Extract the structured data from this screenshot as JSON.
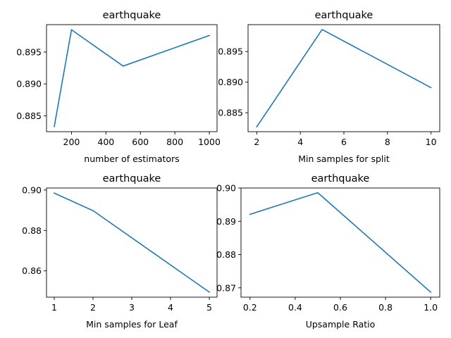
{
  "colors": {
    "line": "#1f77b4",
    "axis": "#000000",
    "background": "#ffffff"
  },
  "chart_data": [
    {
      "type": "line",
      "title": "earthquake",
      "xlabel": "number of estimators",
      "ylabel": "",
      "x": [
        100,
        200,
        500,
        1000
      ],
      "series": [
        {
          "values": [
            0.8833,
            0.8985,
            0.8928,
            0.8976
          ]
        }
      ],
      "xlim": [
        55,
        1045
      ],
      "ylim": [
        0.8825,
        0.8993
      ],
      "xticks": [
        200,
        400,
        600,
        800,
        1000
      ],
      "xtick_labels": [
        "200",
        "400",
        "600",
        "800",
        "1000"
      ],
      "yticks": [
        0.885,
        0.89,
        0.895
      ],
      "ytick_labels": [
        "0.885",
        "0.890",
        "0.895"
      ],
      "grid": false
    },
    {
      "type": "line",
      "title": "earthquake",
      "xlabel": "Min samples for split",
      "ylabel": "",
      "x": [
        2,
        5,
        10
      ],
      "series": [
        {
          "values": [
            0.8827,
            0.8986,
            0.8891
          ]
        }
      ],
      "xlim": [
        1.6,
        10.4
      ],
      "ylim": [
        0.8819,
        0.8994
      ],
      "xticks": [
        2,
        4,
        6,
        8,
        10
      ],
      "xtick_labels": [
        "2",
        "4",
        "6",
        "8",
        "10"
      ],
      "yticks": [
        0.885,
        0.89,
        0.895
      ],
      "ytick_labels": [
        "0.885",
        "0.890",
        "0.895"
      ],
      "grid": false
    },
    {
      "type": "line",
      "title": "earthquake",
      "xlabel": "Min samples for Leaf",
      "ylabel": "",
      "x": [
        1,
        2,
        5
      ],
      "series": [
        {
          "values": [
            0.8985,
            0.8898,
            0.8495
          ]
        }
      ],
      "xlim": [
        0.8,
        5.2
      ],
      "ylim": [
        0.847,
        0.901
      ],
      "xticks": [
        1,
        2,
        3,
        4,
        5
      ],
      "xtick_labels": [
        "1",
        "2",
        "3",
        "4",
        "5"
      ],
      "yticks": [
        0.86,
        0.88,
        0.9
      ],
      "ytick_labels": [
        "0.86",
        "0.88",
        "0.90"
      ],
      "grid": false
    },
    {
      "type": "line",
      "title": "earthquake",
      "xlabel": "Upsample Ratio",
      "ylabel": "",
      "x": [
        0.2,
        0.5,
        1.0
      ],
      "series": [
        {
          "values": [
            0.8921,
            0.8986,
            0.8687
          ]
        }
      ],
      "xlim": [
        0.16,
        1.04
      ],
      "ylim": [
        0.8672,
        0.9
      ],
      "xticks": [
        0.2,
        0.4,
        0.6,
        0.8,
        1.0
      ],
      "xtick_labels": [
        "0.2",
        "0.4",
        "0.6",
        "0.8",
        "1.0"
      ],
      "yticks": [
        0.87,
        0.88,
        0.89,
        0.9
      ],
      "ytick_labels": [
        "0.87",
        "0.88",
        "0.89",
        "0.90"
      ],
      "grid": false
    }
  ]
}
